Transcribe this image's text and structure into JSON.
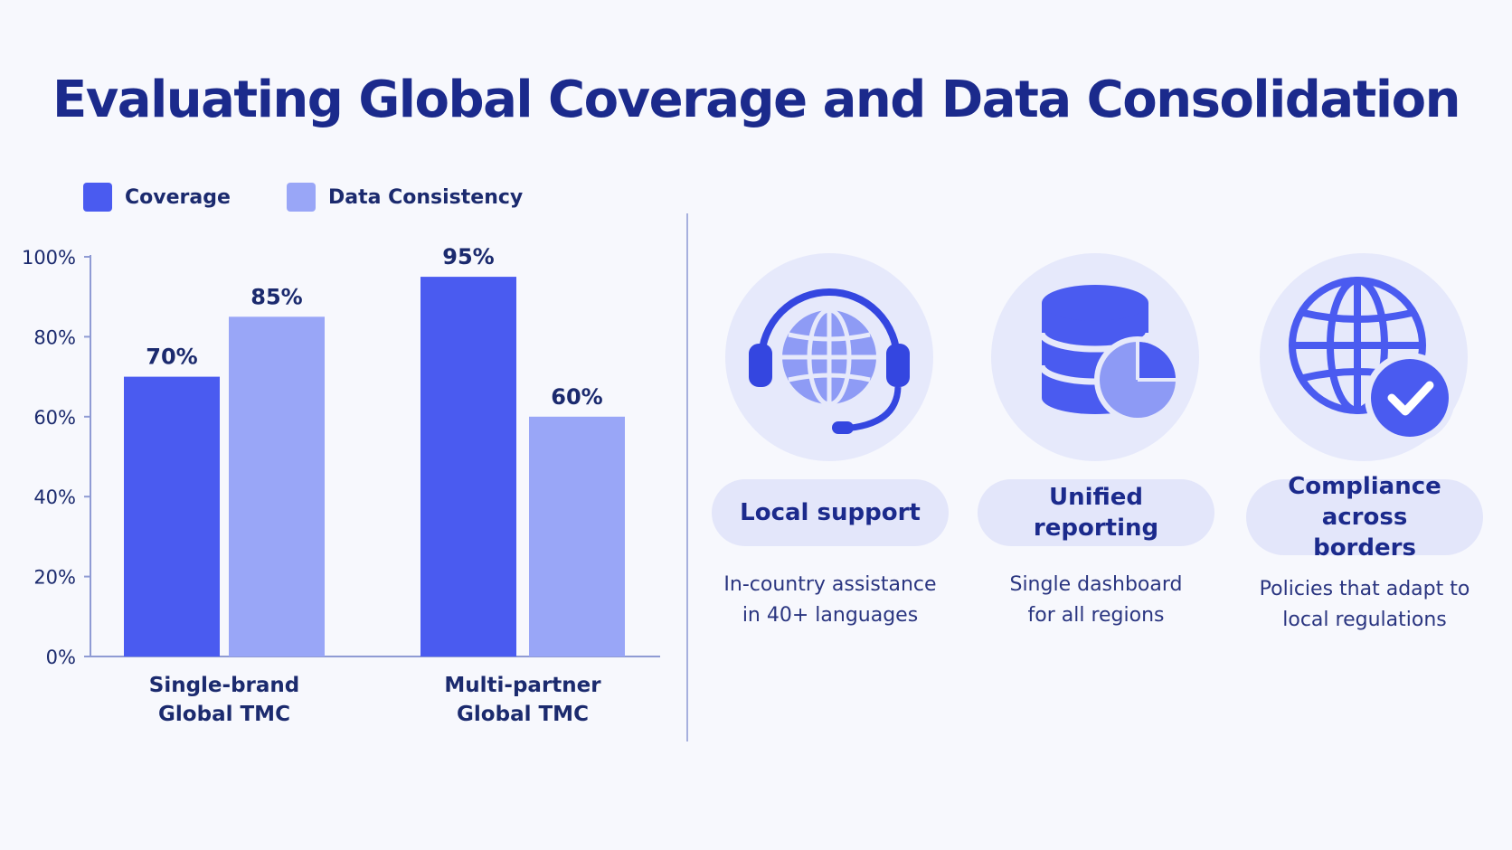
{
  "title": "Evaluating Global Coverage and Data Consolidation",
  "legend": [
    {
      "label": "Coverage",
      "color": "#4a5bf0"
    },
    {
      "label": "Data Consistency",
      "color": "#99a6f7"
    }
  ],
  "chart_data": {
    "type": "bar",
    "categories": [
      [
        "Single-brand",
        "Global TMC"
      ],
      [
        "Multi-partner",
        "Global TMC"
      ]
    ],
    "series": [
      {
        "name": "Coverage",
        "values": [
          70,
          95
        ],
        "color": "#4a5bf0"
      },
      {
        "name": "Data Consistency",
        "values": [
          85,
          60
        ],
        "color": "#99a6f7"
      }
    ],
    "data_labels": [
      [
        "70%",
        "85%"
      ],
      [
        "95%",
        "60%"
      ]
    ],
    "y_ticks": [
      0,
      20,
      40,
      60,
      80,
      100
    ],
    "y_tick_labels": [
      "0%",
      "20%",
      "40%",
      "60%",
      "80%",
      "100%"
    ],
    "ylim": [
      0,
      100
    ],
    "grid": false,
    "legend_position": "top-left"
  },
  "features": [
    {
      "icon": "headset-globe-icon",
      "label": "Local support",
      "description": [
        "In-country assistance",
        "in 40+ languages"
      ]
    },
    {
      "icon": "database-pie-icon",
      "label": "Unified reporting",
      "description": [
        "Single dashboard",
        "for all regions"
      ]
    },
    {
      "icon": "globe-check-icon",
      "label": [
        "Compliance across",
        "borders"
      ],
      "description": [
        "Policies that adapt to",
        "local regulations"
      ]
    }
  ]
}
